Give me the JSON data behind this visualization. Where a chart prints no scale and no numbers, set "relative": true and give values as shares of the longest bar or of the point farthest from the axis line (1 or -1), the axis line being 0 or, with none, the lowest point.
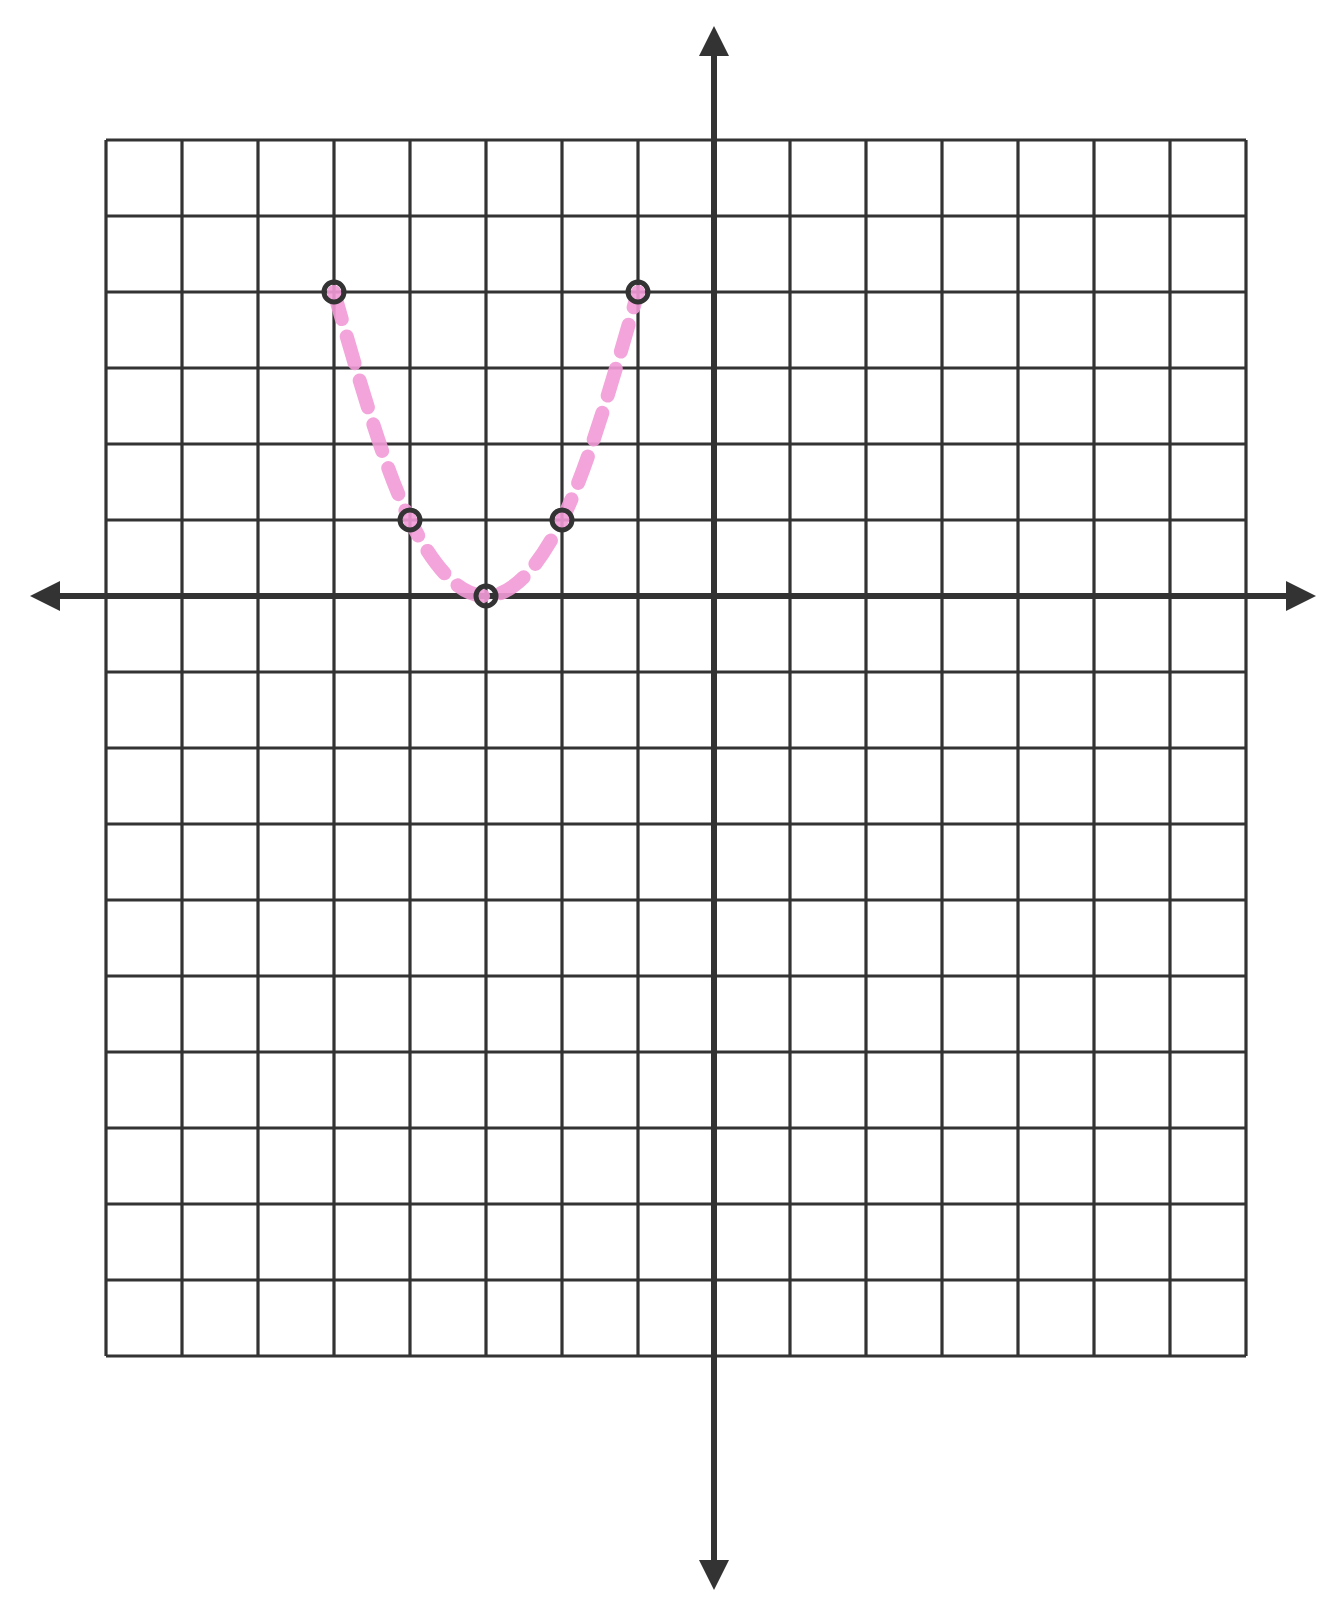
{
  "chart_data": {
    "type": "line",
    "relative": true,
    "categories": [
      null,
      null,
      null,
      null,
      null,
      null,
      null,
      null,
      null,
      null,
      null,
      null,
      null,
      null,
      null,
      null
    ],
    "series": [
      {
        "color": "#f29ad6",
        "values": [
          null,
          null,
          null,
          1,
          0.25,
          0,
          0.25,
          1,
          null,
          null,
          null,
          null,
          null,
          null,
          null,
          null
        ]
      }
    ],
    "grid": true,
    "marker": "circle",
    "line_style": "dashed"
  }
}
